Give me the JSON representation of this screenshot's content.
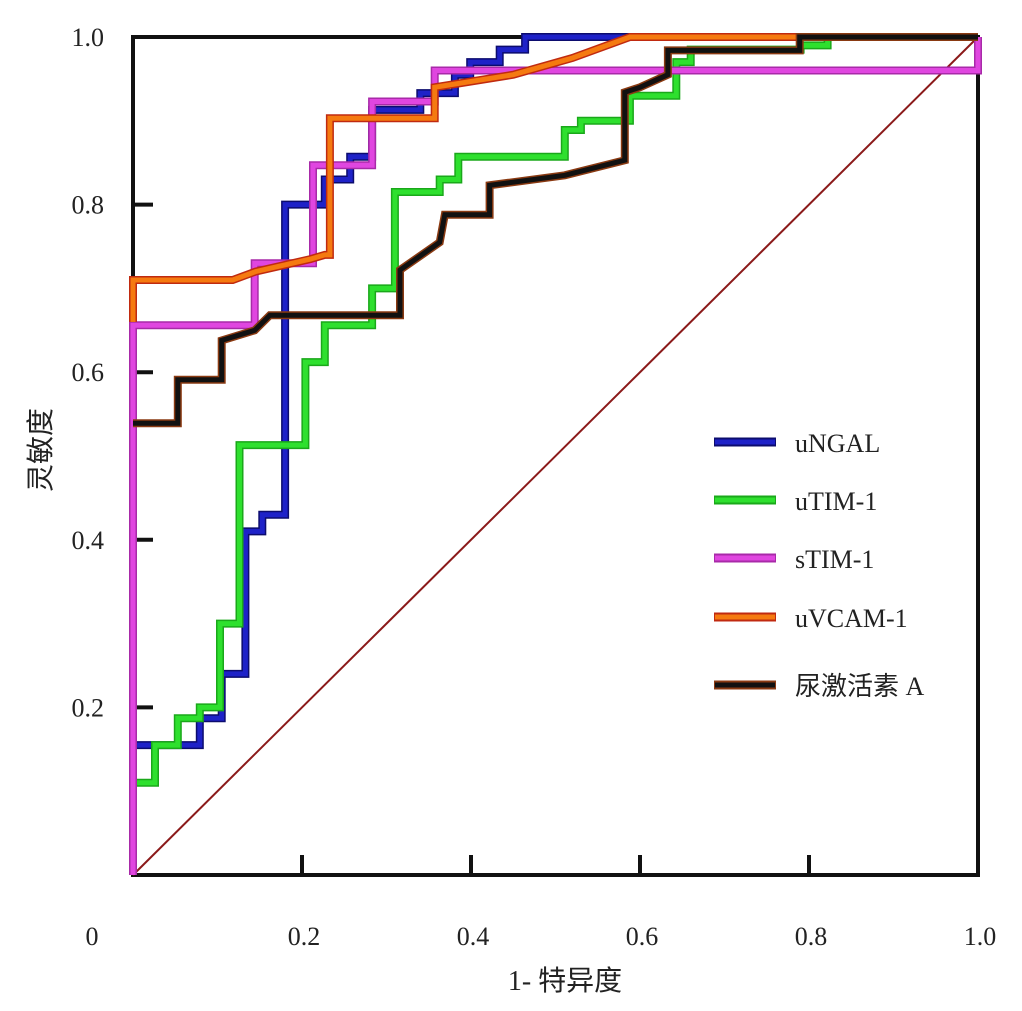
{
  "chart_data": {
    "type": "line",
    "xlabel": "1- 特异度",
    "ylabel": "灵敏度",
    "xlim": [
      0,
      1
    ],
    "ylim": [
      0,
      1
    ],
    "origin_label": "0",
    "x_ticks": [
      {
        "value": 0.2,
        "label": "0.2"
      },
      {
        "value": 0.4,
        "label": "0.4"
      },
      {
        "value": 0.6,
        "label": "0.6"
      },
      {
        "value": 0.8,
        "label": "0.8"
      },
      {
        "value": 1.0,
        "label": "1.0"
      }
    ],
    "y_ticks": [
      {
        "value": 0.2,
        "label": "0.2"
      },
      {
        "value": 0.4,
        "label": "0.4"
      },
      {
        "value": 0.6,
        "label": "0.6"
      },
      {
        "value": 0.8,
        "label": "0.8"
      },
      {
        "value": 1.0,
        "label": "1.0"
      }
    ],
    "grid": false,
    "legend_position": "center-right",
    "reference_line": {
      "x": [
        0,
        1
      ],
      "y": [
        0,
        1
      ],
      "color": "#8b1a1a"
    },
    "frame_color": "#111111",
    "series": [
      {
        "name": "uNGAL",
        "color": "#1e22c8",
        "outline": "#0c0c6e",
        "points": [
          [
            0,
            0.155
          ],
          [
            0.079,
            0.155
          ],
          [
            0.079,
            0.187
          ],
          [
            0.105,
            0.187
          ],
          [
            0.105,
            0.24
          ],
          [
            0.133,
            0.24
          ],
          [
            0.133,
            0.41
          ],
          [
            0.153,
            0.41
          ],
          [
            0.153,
            0.43
          ],
          [
            0.18,
            0.43
          ],
          [
            0.18,
            0.8
          ],
          [
            0.227,
            0.8
          ],
          [
            0.227,
            0.83
          ],
          [
            0.257,
            0.83
          ],
          [
            0.257,
            0.857
          ],
          [
            0.283,
            0.857
          ],
          [
            0.283,
            0.913
          ],
          [
            0.34,
            0.913
          ],
          [
            0.34,
            0.933
          ],
          [
            0.381,
            0.933
          ],
          [
            0.381,
            0.955
          ],
          [
            0.399,
            0.955
          ],
          [
            0.399,
            0.97
          ],
          [
            0.434,
            0.97
          ],
          [
            0.434,
            0.985
          ],
          [
            0.464,
            0.985
          ],
          [
            0.464,
            1.0
          ],
          [
            1.0,
            1.0
          ]
        ]
      },
      {
        "name": "uTIM-1",
        "color": "#2ee02e",
        "outline": "#1aa81a",
        "points": [
          [
            0,
            0.11
          ],
          [
            0.026,
            0.11
          ],
          [
            0.026,
            0.155
          ],
          [
            0.053,
            0.155
          ],
          [
            0.053,
            0.187
          ],
          [
            0.079,
            0.187
          ],
          [
            0.079,
            0.2
          ],
          [
            0.103,
            0.2
          ],
          [
            0.103,
            0.3
          ],
          [
            0.126,
            0.3
          ],
          [
            0.126,
            0.513
          ],
          [
            0.204,
            0.513
          ],
          [
            0.204,
            0.612
          ],
          [
            0.227,
            0.612
          ],
          [
            0.227,
            0.656
          ],
          [
            0.283,
            0.656
          ],
          [
            0.283,
            0.7
          ],
          [
            0.31,
            0.7
          ],
          [
            0.31,
            0.815
          ],
          [
            0.363,
            0.815
          ],
          [
            0.363,
            0.83
          ],
          [
            0.385,
            0.83
          ],
          [
            0.385,
            0.857
          ],
          [
            0.511,
            0.857
          ],
          [
            0.511,
            0.889
          ],
          [
            0.53,
            0.889
          ],
          [
            0.53,
            0.9
          ],
          [
            0.588,
            0.9
          ],
          [
            0.588,
            0.93
          ],
          [
            0.643,
            0.93
          ],
          [
            0.643,
            0.97
          ],
          [
            0.66,
            0.97
          ],
          [
            0.66,
            0.985
          ],
          [
            0.79,
            0.985
          ],
          [
            0.79,
            0.99
          ],
          [
            0.822,
            0.99
          ],
          [
            0.822,
            1.0
          ],
          [
            1.0,
            1.0
          ]
        ]
      },
      {
        "name": "sTIM-1",
        "color": "#e046e0",
        "outline": "#a82aa8",
        "points": [
          [
            0,
            0
          ],
          [
            0,
            0.656
          ],
          [
            0.144,
            0.656
          ],
          [
            0.144,
            0.73
          ],
          [
            0.213,
            0.73
          ],
          [
            0.213,
            0.847
          ],
          [
            0.283,
            0.847
          ],
          [
            0.283,
            0.923
          ],
          [
            0.357,
            0.923
          ],
          [
            0.357,
            0.96
          ],
          [
            1.0,
            0.96
          ],
          [
            1.0,
            1.0
          ]
        ]
      },
      {
        "name": "uVCAM-1",
        "color": "#f57a10",
        "outline": "#c02a10",
        "points": [
          [
            0,
            0.66
          ],
          [
            0,
            0.71
          ],
          [
            0.118,
            0.71
          ],
          [
            0.145,
            0.72
          ],
          [
            0.21,
            0.735
          ],
          [
            0.227,
            0.74
          ],
          [
            0.233,
            0.74
          ],
          [
            0.233,
            0.903
          ],
          [
            0.357,
            0.903
          ],
          [
            0.357,
            0.94
          ],
          [
            0.45,
            0.955
          ],
          [
            0.52,
            0.975
          ],
          [
            0.588,
            1.0
          ],
          [
            1.0,
            1.0
          ]
        ]
      },
      {
        "name": "尿激活素 A",
        "color": "#111111",
        "outline": "#8a3a12",
        "points": [
          [
            0,
            0.539
          ],
          [
            0.053,
            0.539
          ],
          [
            0.053,
            0.591
          ],
          [
            0.105,
            0.591
          ],
          [
            0.105,
            0.638
          ],
          [
            0.144,
            0.65
          ],
          [
            0.162,
            0.668
          ],
          [
            0.316,
            0.668
          ],
          [
            0.316,
            0.722
          ],
          [
            0.363,
            0.755
          ],
          [
            0.369,
            0.788
          ],
          [
            0.422,
            0.788
          ],
          [
            0.422,
            0.823
          ],
          [
            0.511,
            0.835
          ],
          [
            0.582,
            0.853
          ],
          [
            0.582,
            0.934
          ],
          [
            0.6,
            0.94
          ],
          [
            0.633,
            0.955
          ],
          [
            0.633,
            0.984
          ],
          [
            0.789,
            0.984
          ],
          [
            0.789,
            1.0
          ],
          [
            1.0,
            1.0
          ]
        ]
      }
    ]
  }
}
